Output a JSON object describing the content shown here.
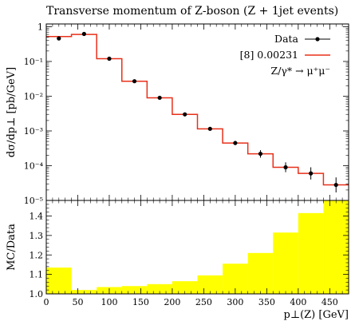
{
  "figure": {
    "title": "Transverse momentum of Z-boson (Z + 1jet events)"
  },
  "chart_data": [
    {
      "type": "line",
      "title": "Transverse momentum of Z-boson (Z + 1jet events)",
      "ylabel": "dσ/dp⊥ [pb/GeV]",
      "yscale": "log",
      "ylim": [
        1e-05,
        1.2
      ],
      "xlim": [
        0,
        480
      ],
      "ytick_labels": [
        "1",
        "10⁻¹",
        "10⁻²",
        "10⁻³",
        "10⁻⁴",
        "10⁻⁵"
      ],
      "legend_position": "top-right",
      "legend_extra": "Z/γ* → μ⁺μ⁻",
      "series": [
        {
          "name": "Data",
          "style": "points with error bars",
          "color": "#000000",
          "x": [
            20,
            60,
            100,
            140,
            180,
            220,
            260,
            300,
            340,
            380,
            420,
            460
          ],
          "y": [
            0.46,
            0.62,
            0.12,
            0.027,
            0.009,
            0.003,
            0.00115,
            0.00045,
            0.00022,
            9e-05,
            6e-05,
            2.8e-05
          ],
          "y_err_up": [
            0.05,
            0.06,
            0.012,
            0.002,
            0.0007,
            0.0003,
            0.0001,
            7e-05,
            6e-05,
            3.5e-05,
            3e-05,
            1.8e-05
          ],
          "y_err_down": [
            0.05,
            0.06,
            0.012,
            0.002,
            0.0007,
            0.0003,
            0.0001,
            6e-05,
            5e-05,
            2.5e-05,
            2e-05,
            1.1e-05
          ]
        },
        {
          "name": "[8] 0.00231",
          "style": "histogram",
          "color": "#e8301a",
          "bin_edges": [
            0,
            40,
            80,
            120,
            160,
            200,
            240,
            280,
            320,
            360,
            400,
            440,
            480
          ],
          "values": [
            0.52,
            0.6,
            0.12,
            0.027,
            0.009,
            0.003,
            0.00115,
            0.00045,
            0.00022,
            9e-05,
            6e-05,
            2.8e-05
          ]
        }
      ]
    },
    {
      "type": "area",
      "ylabel": "MC/Data",
      "xlabel": "p⊥(Z) [GeV]",
      "xlim": [
        0,
        480
      ],
      "ylim": [
        1.0,
        1.48
      ],
      "x_ticks": [
        0,
        50,
        100,
        150,
        200,
        250,
        300,
        350,
        400,
        450
      ],
      "y_ticks": [
        1.0,
        1.1,
        1.2,
        1.3,
        1.4
      ],
      "band_color": "#ffff00",
      "bin_edges": [
        0,
        40,
        80,
        120,
        160,
        200,
        240,
        280,
        320,
        360,
        400,
        440,
        480
      ],
      "band_low": [
        1.0,
        1.0,
        1.0,
        1.0,
        1.0,
        1.0,
        1.0,
        1.0,
        1.0,
        1.0,
        1.0,
        1.0
      ],
      "band_high": [
        1.135,
        1.02,
        1.035,
        1.04,
        1.05,
        1.065,
        1.095,
        1.155,
        1.21,
        1.315,
        1.415,
        1.48
      ]
    }
  ]
}
